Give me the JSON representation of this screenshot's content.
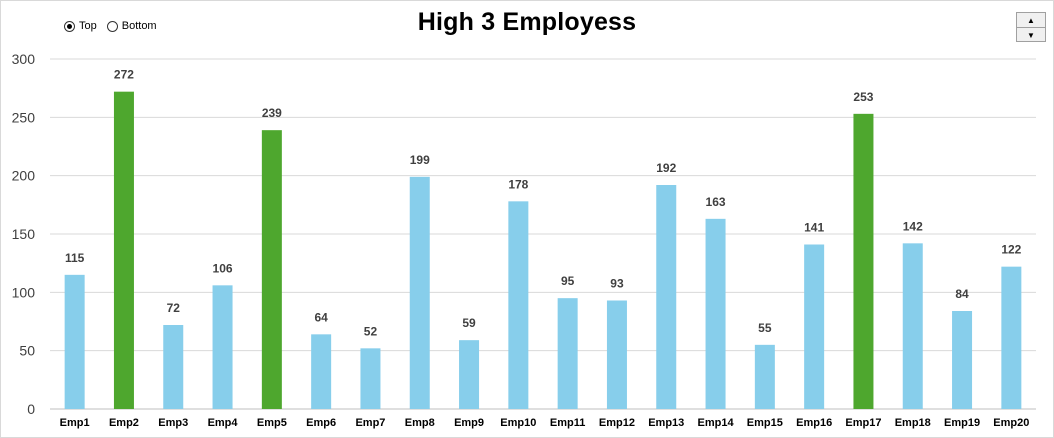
{
  "chart_data": {
    "type": "bar",
    "title": "High 3 Employess",
    "categories": [
      "Emp1",
      "Emp2",
      "Emp3",
      "Emp4",
      "Emp5",
      "Emp6",
      "Emp7",
      "Emp8",
      "Emp9",
      "Emp10",
      "Emp11",
      "Emp12",
      "Emp13",
      "Emp14",
      "Emp15",
      "Emp16",
      "Emp17",
      "Emp18",
      "Emp19",
      "Emp20"
    ],
    "values": [
      115,
      272,
      72,
      106,
      239,
      64,
      52,
      199,
      59,
      178,
      95,
      93,
      192,
      163,
      55,
      141,
      253,
      142,
      84,
      122
    ],
    "highlighted": [
      false,
      true,
      false,
      false,
      true,
      false,
      false,
      false,
      false,
      false,
      false,
      false,
      false,
      false,
      false,
      false,
      true,
      false,
      false,
      false
    ],
    "ylim": [
      0,
      300
    ],
    "yticks": [
      0,
      50,
      100,
      150,
      200,
      250,
      300
    ],
    "grid": true,
    "data_labels": true,
    "colors": {
      "default": "#87CEEB",
      "highlight": "#4EA72E",
      "grid": "#d9d9d9"
    }
  },
  "controls": {
    "radio_top_label": "Top",
    "radio_bottom_label": "Bottom",
    "selected": "Top"
  }
}
